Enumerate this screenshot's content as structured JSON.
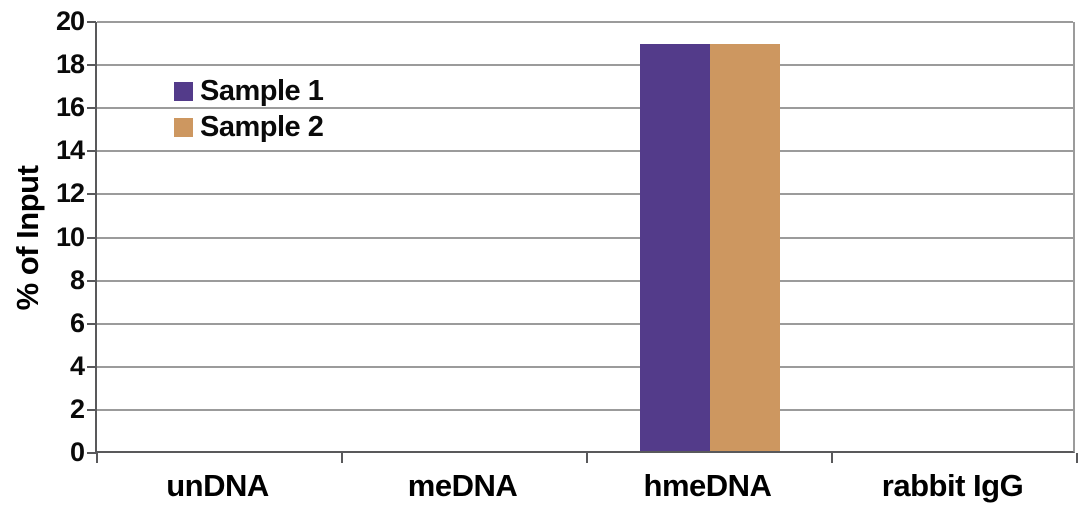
{
  "chart_data": {
    "type": "bar",
    "title": "",
    "xlabel": "",
    "ylabel": "% of Input",
    "categories": [
      "unDNA",
      "meDNA",
      "hmeDNA",
      "rabbit IgG"
    ],
    "series": [
      {
        "name": "Sample 1",
        "color": "#533B8A",
        "values": [
          0,
          0,
          18.9,
          0
        ]
      },
      {
        "name": "Sample 2",
        "color": "#CD9760",
        "values": [
          0,
          0,
          18.9,
          0
        ]
      }
    ],
    "ylim": [
      0,
      20
    ],
    "ytick_step": 2,
    "grid": "horizontal",
    "legend_position": "upper-left-inside",
    "axis_color": "#59595B",
    "grid_color": "#9B9B9B",
    "text_color": "#000000"
  }
}
